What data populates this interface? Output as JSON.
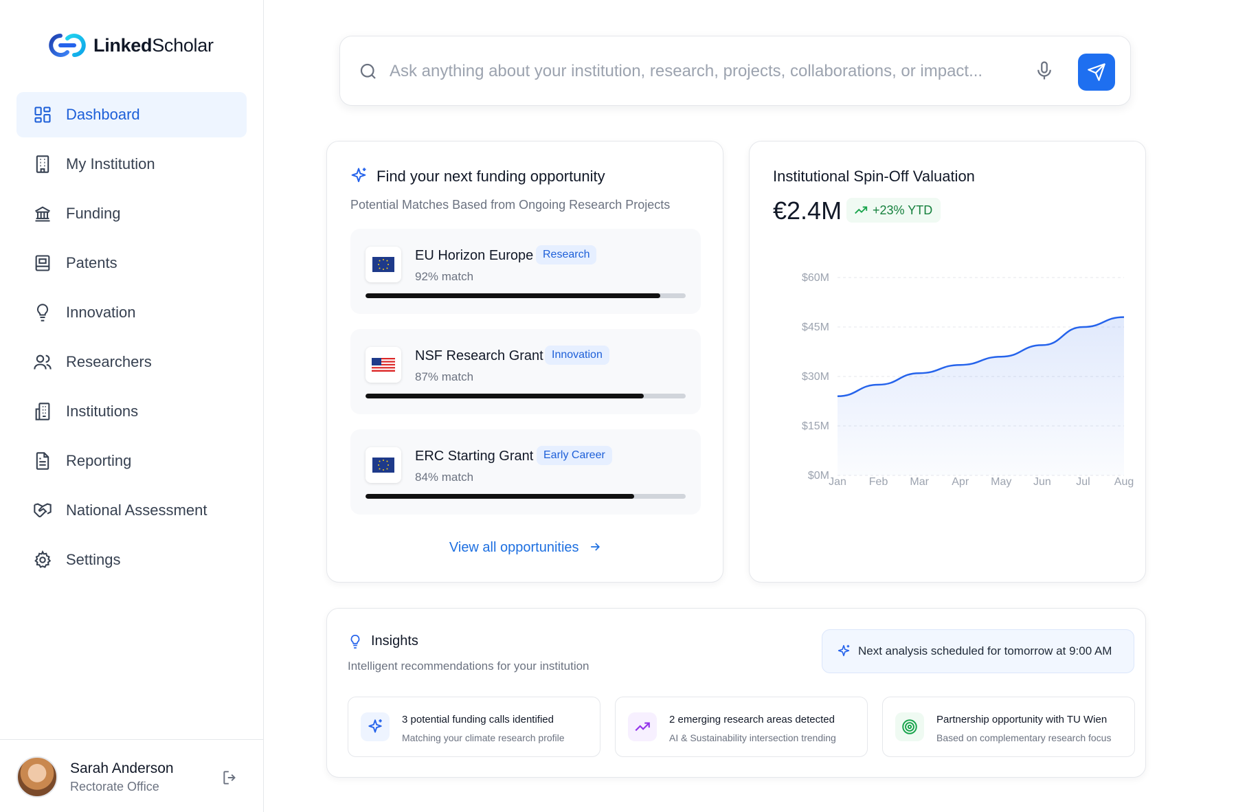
{
  "brand": {
    "name_bold": "Linked",
    "name_light": "Scholar"
  },
  "sidebar": {
    "items": [
      {
        "label": "Dashboard",
        "icon": "dashboard-icon",
        "active": true
      },
      {
        "label": "My Institution",
        "icon": "building-icon"
      },
      {
        "label": "Funding",
        "icon": "bank-icon"
      },
      {
        "label": "Patents",
        "icon": "patent-icon"
      },
      {
        "label": "Innovation",
        "icon": "lightbulb-icon"
      },
      {
        "label": "Researchers",
        "icon": "users-icon"
      },
      {
        "label": "Institutions",
        "icon": "institutions-icon"
      },
      {
        "label": "Reporting",
        "icon": "document-icon"
      },
      {
        "label": "National Assessment",
        "icon": "handshake-icon"
      },
      {
        "label": "Settings",
        "icon": "gear-icon"
      }
    ]
  },
  "user": {
    "name": "Sarah Anderson",
    "role": "Rectorate Office"
  },
  "search": {
    "placeholder": "Ask anything about your institution, research, projects, collaborations, or impact..."
  },
  "funding": {
    "title": "Find your next funding opportunity",
    "subtitle": "Potential Matches Based from Ongoing Research Projects",
    "matches": [
      {
        "name": "EU Horizon Europe",
        "badge": "Research",
        "match_text": "92% match",
        "match": 0.92,
        "flag": "eu"
      },
      {
        "name": "NSF Research Grant",
        "badge": "Innovation",
        "match_text": "87% match",
        "match": 0.87,
        "flag": "us"
      },
      {
        "name": "ERC Starting Grant",
        "badge": "Early Career",
        "match_text": "84% match",
        "match": 0.84,
        "flag": "eu"
      }
    ],
    "view_all": "View all opportunities"
  },
  "valuation": {
    "title": "Institutional Spin-Off Valuation",
    "amount": "€2.4M",
    "change": "+23% YTD",
    "accent": "#2563eb"
  },
  "chart_data": {
    "type": "area",
    "categories": [
      "Jan",
      "Feb",
      "Mar",
      "Apr",
      "May",
      "Jun",
      "Jul",
      "Aug"
    ],
    "series": [
      {
        "values": [
          24,
          27.5,
          31,
          33.5,
          36,
          39.5,
          45,
          48
        ]
      }
    ],
    "yticks": [
      "$0M",
      "$15M",
      "$30M",
      "$45M",
      "$60M"
    ],
    "ylim": [
      0,
      60
    ],
    "grid": true
  },
  "insights": {
    "title": "Insights",
    "subtitle": "Intelligent recommendations for your institution",
    "schedule": "Next analysis scheduled for tomorrow at 9:00 AM",
    "items": [
      {
        "title": "3 potential funding calls identified",
        "desc": "Matching your climate research profile",
        "icon": "sparkle-icon",
        "color": "#2563eb"
      },
      {
        "title": "2 emerging research areas detected",
        "desc": "AI & Sustainability intersection trending",
        "icon": "trending-up-icon",
        "color": "#9333ea"
      },
      {
        "title": "Partnership opportunity with TU Wien",
        "desc": "Based on complementary research focus",
        "icon": "target-icon",
        "color": "#16a34a"
      }
    ]
  }
}
